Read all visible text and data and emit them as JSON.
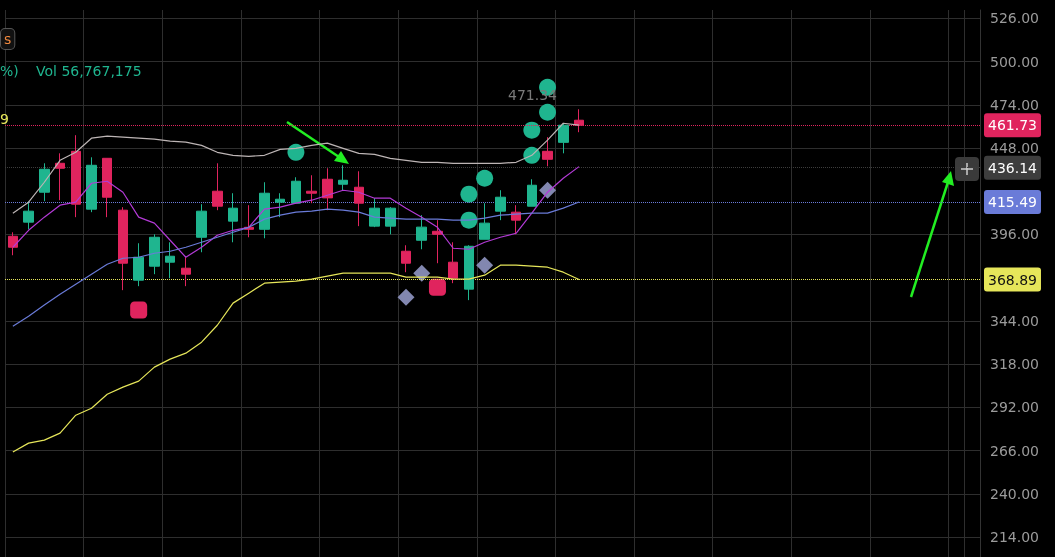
{
  "chart_data": {
    "type": "candlestick",
    "categories": [
      null,
      null,
      null,
      null,
      null,
      null,
      null,
      null,
      null,
      null,
      null,
      null,
      null,
      null,
      null,
      null,
      null,
      null,
      null,
      null,
      null,
      null,
      null,
      null,
      null,
      null,
      null,
      null,
      null,
      null,
      null,
      null,
      null,
      null,
      null,
      null,
      null,
      null,
      null,
      null,
      null,
      null,
      null,
      null,
      null,
      null,
      null,
      null,
      null,
      null,
      null,
      null,
      null,
      null,
      null,
      null,
      null,
      null,
      null,
      null,
      null,
      null
    ],
    "ohlc": [
      [
        394.9,
        397.3,
        383.5,
        388.3
      ],
      [
        403.4,
        416.0,
        399.1,
        410.0
      ],
      [
        421.4,
        438.8,
        416.0,
        435.2
      ],
      [
        438.8,
        444.8,
        416.6,
        435.8
      ],
      [
        446.0,
        455.7,
        406.4,
        414.2
      ],
      [
        411.2,
        442.4,
        409.4,
        437.6
      ],
      [
        441.8,
        441.8,
        406.4,
        418.4
      ],
      [
        410.6,
        412.4,
        362.5,
        378.7
      ],
      [
        368.5,
        390.7,
        364.9,
        382.3
      ],
      [
        376.9,
        396.1,
        372.1,
        394.3
      ],
      [
        379.3,
        391.3,
        369.7,
        382.9
      ],
      [
        375.7,
        382.3,
        364.9,
        372.1
      ],
      [
        394.3,
        414.2,
        385.3,
        410.0
      ],
      [
        422.0,
        438.8,
        410.6,
        413.0
      ],
      [
        404.0,
        420.8,
        391.3,
        411.8
      ],
      [
        400.3,
        413.6,
        394.3,
        399.1
      ],
      [
        399.1,
        427.4,
        393.7,
        420.8
      ],
      [
        415.4,
        420.8,
        406.4,
        417.2
      ],
      [
        414.8,
        430.4,
        414.8,
        428.0
      ],
      [
        422.0,
        431.6,
        414.8,
        420.8
      ],
      [
        429.2,
        435.8,
        410.6,
        418.0
      ],
      [
        426.2,
        437.6,
        422.6,
        428.6
      ],
      [
        424.4,
        434.0,
        401.0,
        414.8
      ],
      [
        401.0,
        417.8,
        400.4,
        411.8
      ],
      [
        401.0,
        412.4,
        396.1,
        411.8
      ],
      [
        385.9,
        389.5,
        373.3,
        378.7
      ],
      [
        392.5,
        407.6,
        387.1,
        400.4
      ],
      [
        397.9,
        404.6,
        378.7,
        396.1
      ],
      [
        379.3,
        391.3,
        366.7,
        369.7
      ],
      [
        363.1,
        389.5,
        356.5,
        388.9
      ],
      [
        393.1,
        414.8,
        393.1,
        402.8
      ],
      [
        410.0,
        422.6,
        404.6,
        418.4
      ],
      [
        409.4,
        413.6,
        396.1,
        404.6
      ],
      [
        413.0,
        429.2,
        413.0,
        425.6
      ],
      [
        446.0,
        454.5,
        437.0,
        441.2
      ],
      [
        451.4,
        462.9,
        444.8,
        461.7
      ],
      [
        464.7,
        471.3,
        457.5,
        461.7
      ],
      null,
      null,
      null,
      null,
      null,
      null,
      null,
      null,
      null,
      null,
      null,
      null,
      null,
      null,
      null,
      null,
      null,
      null,
      null,
      null,
      null,
      null,
      null,
      null,
      null
    ],
    "colors": [
      "#e0245e",
      "#1fb58f",
      "#1fb58f",
      "#e0245e",
      "#e0245e",
      "#1fb58f",
      "#e0245e",
      "#e0245e",
      "#1fb58f",
      "#1fb58f",
      "#1fb58f",
      "#e0245e",
      "#1fb58f",
      "#e0245e",
      "#1fb58f",
      "#e0245e",
      "#1fb58f",
      "#1fb58f",
      "#1fb58f",
      "#e0245e",
      "#e0245e",
      "#1fb58f",
      "#e0245e",
      "#1fb58f",
      "#1fb58f",
      "#e0245e",
      "#1fb58f",
      "#e0245e",
      "#e0245e",
      "#1fb58f",
      "#1fb58f",
      "#1fb58f",
      "#e0245e",
      "#1fb58f",
      "#e0245e",
      "#1fb58f",
      "#e0245e",
      null,
      null,
      null,
      null,
      null,
      null,
      null,
      null,
      null,
      null,
      null,
      null,
      null,
      null,
      null,
      null,
      null,
      null,
      null,
      null,
      null,
      null,
      null,
      null,
      null
    ],
    "series": [
      {
        "type": "line",
        "color": "#bdb5b5",
        "values": [
          408.8,
          415.4,
          427.4,
          440.6,
          445.4,
          453.9,
          455.1,
          454.5,
          453.9,
          453.3,
          452.1,
          451.5,
          449.6,
          445.4,
          443.6,
          443.0,
          443.6,
          447.2,
          447.8,
          449.6,
          450.9,
          447.8,
          444.8,
          444.2,
          441.8,
          440.6,
          439.4,
          439.4,
          438.8,
          438.8,
          438.8,
          438.8,
          439.4,
          443.6,
          452.7,
          462.9,
          461.7,
          null,
          null,
          null,
          null,
          null,
          null,
          null,
          null,
          null,
          null,
          null,
          null,
          null,
          null,
          null,
          null,
          null,
          null,
          null,
          null,
          null,
          null,
          null,
          null,
          null
        ]
      },
      {
        "type": "line",
        "color": "#b33ad6",
        "values": [
          388.3,
          398.5,
          406.4,
          413.6,
          415.4,
          426.8,
          428.0,
          421.4,
          406.4,
          402.8,
          392.5,
          382.3,
          388.3,
          395.5,
          398.5,
          400.3,
          411.2,
          412.4,
          414.8,
          416.6,
          419.6,
          422.6,
          421.4,
          417.8,
          417.8,
          411.8,
          406.4,
          400.3,
          387.7,
          387.1,
          391.3,
          394.3,
          396.7,
          408.8,
          421.4,
          429.8,
          436.8,
          null,
          null,
          null,
          null,
          null,
          null,
          null,
          null,
          null,
          null,
          null,
          null,
          null,
          null,
          null,
          null,
          null,
          null,
          null,
          null,
          null,
          null,
          null,
          null,
          null
        ]
      },
      {
        "type": "line",
        "color": "#6a7bd8",
        "values": [
          340.8,
          346.8,
          353.5,
          360.1,
          366.1,
          372.1,
          378.1,
          381.7,
          382.3,
          384.7,
          385.9,
          388.3,
          391.3,
          394.3,
          397.3,
          400.3,
          405.2,
          407.6,
          409.4,
          410.0,
          411.2,
          410.6,
          409.4,
          406.4,
          405.8,
          405.2,
          405.2,
          405.2,
          404.6,
          404.6,
          405.8,
          407.6,
          408.2,
          408.8,
          408.8,
          411.8,
          415.5,
          null,
          null,
          null,
          null,
          null,
          null,
          null,
          null,
          null,
          null,
          null,
          null,
          null,
          null,
          null,
          null,
          null,
          null,
          null,
          null,
          null,
          null,
          null,
          null,
          null
        ]
      },
      {
        "type": "line",
        "color": "#e6e65a",
        "values": [
          265.1,
          270.5,
          272.3,
          276.5,
          287.3,
          291.5,
          299.9,
          304.2,
          307.8,
          316.2,
          321.0,
          324.6,
          331.2,
          341.4,
          354.7,
          360.7,
          366.7,
          367.3,
          367.9,
          369.1,
          370.9,
          372.7,
          372.7,
          372.7,
          372.7,
          370.3,
          370.3,
          370.3,
          369.1,
          369.1,
          371.5,
          377.5,
          377.5,
          376.9,
          376.3,
          373.3,
          368.9,
          null,
          null,
          null,
          null,
          null,
          null,
          null,
          null,
          null,
          null,
          null,
          null,
          null,
          null,
          null,
          null,
          null,
          null,
          null,
          null,
          null,
          null,
          null,
          null,
          null
        ]
      },
      {
        "type": "scatter",
        "marker": "circle",
        "color": "#1fb58f",
        "values": [
          null,
          null,
          null,
          null,
          null,
          null,
          null,
          null,
          null,
          null,
          null,
          null,
          null,
          null,
          null,
          null,
          null,
          null,
          445.4,
          null,
          null,
          null,
          null,
          null,
          null,
          null,
          null,
          null,
          null,
          404.6,
          429.8,
          null,
          null,
          443.6,
          469.5,
          null,
          null,
          null,
          null,
          null,
          null,
          null,
          null,
          null,
          null,
          null,
          null,
          null,
          null,
          null,
          null,
          null,
          null,
          null,
          null,
          null,
          null,
          null,
          null,
          null,
          null,
          null
        ]
      },
      {
        "type": "scatter",
        "marker": "circle",
        "color": "#1fb58f",
        "values": [
          null,
          null,
          null,
          null,
          null,
          null,
          null,
          null,
          null,
          null,
          null,
          null,
          null,
          null,
          null,
          null,
          null,
          null,
          null,
          null,
          null,
          null,
          null,
          null,
          null,
          null,
          null,
          null,
          null,
          420.2,
          null,
          null,
          null,
          458.7,
          484.5,
          null,
          null,
          null,
          null,
          null,
          null,
          null,
          null,
          null,
          null,
          null,
          null,
          null,
          null,
          null,
          null,
          null,
          null,
          null,
          null,
          null,
          null,
          null,
          null,
          null,
          null,
          null
        ]
      },
      {
        "type": "scatter",
        "marker": "square",
        "color": "#e0245e",
        "values": [
          null,
          null,
          null,
          null,
          null,
          null,
          null,
          null,
          350.5,
          null,
          null,
          null,
          null,
          null,
          null,
          null,
          null,
          null,
          null,
          null,
          null,
          null,
          null,
          null,
          null,
          null,
          null,
          364.3,
          null,
          null,
          null,
          null,
          null,
          null,
          null,
          null,
          null,
          null,
          null,
          null,
          null,
          null,
          null,
          null,
          null,
          null,
          null,
          null,
          null,
          null,
          null,
          null,
          null,
          null,
          null,
          null,
          null,
          null,
          null,
          null,
          null,
          null
        ]
      },
      {
        "type": "scatter",
        "marker": "diamond",
        "color": "#8287b0",
        "values": [
          null,
          null,
          null,
          null,
          null,
          null,
          null,
          null,
          null,
          null,
          null,
          null,
          null,
          null,
          null,
          null,
          null,
          null,
          null,
          null,
          null,
          null,
          null,
          null,
          null,
          358.3,
          372.7,
          null,
          null,
          null,
          377.5,
          null,
          null,
          null,
          422.6,
          null,
          null,
          null,
          null,
          null,
          null,
          null,
          null,
          null,
          null,
          null,
          null,
          null,
          null,
          null,
          null,
          null,
          null,
          null,
          null,
          null,
          null,
          null,
          null,
          null,
          null,
          null
        ]
      }
    ],
    "ylim": [
      202,
      531
    ],
    "yticks": [
      {
        "value": 214,
        "label": "214.00"
      },
      {
        "value": 240,
        "label": "240.00"
      },
      {
        "value": 266,
        "label": "266.00"
      },
      {
        "value": 292,
        "label": "292.00"
      },
      {
        "value": 318,
        "label": "318.00"
      },
      {
        "value": 344,
        "label": "344.00"
      },
      {
        "value": 396,
        "label": "396.00"
      },
      {
        "value": 448,
        "label": "448.00"
      },
      {
        "value": 474,
        "label": "474.00"
      },
      {
        "value": 500,
        "label": "500.00"
      },
      {
        "value": 526,
        "label": "526.00"
      }
    ],
    "ref_lines": [
      {
        "axis": "y",
        "value": 461.73,
        "label": "461.73",
        "color": "#e0245e",
        "line_style": "dotted"
      },
      {
        "axis": "y",
        "value": 436.14,
        "label": "436.14",
        "color": "#3d3d3d",
        "line_style": "dotted"
      },
      {
        "axis": "y",
        "value": 415.49,
        "label": "415.49",
        "color": "#6a7bd8",
        "line_style": "dotted"
      },
      {
        "axis": "y",
        "value": 368.89,
        "label": "368.89",
        "color": "#e6e65a",
        "line_style": "dotted"
      }
    ],
    "annotations": [
      "s",
      "%)",
      "Vol 56,767,175",
      "9",
      "471.34"
    ],
    "grid": true,
    "tick_labels": "y"
  }
}
